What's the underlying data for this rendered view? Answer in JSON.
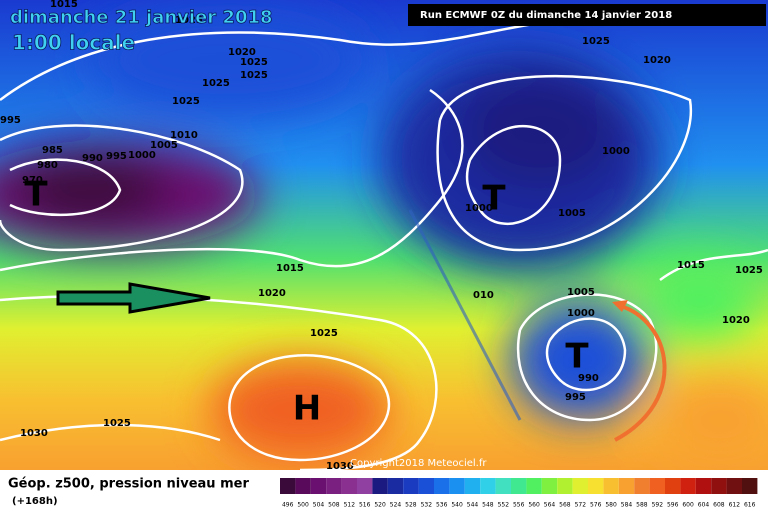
{
  "header": {
    "date": "dimanche 21 janvier 2018",
    "time": "1:00 locale",
    "run": "Run ECMWF 0Z du dimanche 14 janvier 2018"
  },
  "map": {
    "pressure_labels": [
      "1015",
      "1025",
      "1020",
      "1025",
      "1025",
      "1025",
      "1025",
      "995",
      "1010",
      "1005",
      "985",
      "990",
      "995",
      "1000",
      "980",
      "970",
      "1000",
      "1005",
      "1000",
      "1025",
      "1020",
      "1015",
      "1020",
      "010",
      "1005",
      "1000",
      "1025",
      "1015",
      "1025",
      "1020",
      "990",
      "995",
      "1025",
      "1030",
      "1030"
    ],
    "systems": [
      "T",
      "T",
      "T",
      "H"
    ]
  },
  "footer": {
    "title": "Géop. z500, pression niveau mer",
    "lead": "(+168h)",
    "copyright": "Copyright2018 Meteociel.fr"
  },
  "colorbar": {
    "labels": [
      496,
      500,
      504,
      508,
      512,
      516,
      520,
      524,
      528,
      532,
      536,
      540,
      544,
      548,
      552,
      556,
      560,
      564,
      568,
      572,
      576,
      580,
      584,
      588,
      592,
      596,
      600,
      604,
      608,
      612,
      616
    ],
    "colors": [
      "#3a0a3a",
      "#5a0a5a",
      "#6a1070",
      "#7a2080",
      "#8a3090",
      "#9040a0",
      "#1a1a80",
      "#1a2aa0",
      "#1a3ac0",
      "#1a50d8",
      "#1a70e8",
      "#1a90f0",
      "#20b0f0",
      "#30d0e8",
      "#40e0c0",
      "#40e890",
      "#50f060",
      "#80f040",
      "#b0f030",
      "#e0f030",
      "#f8e030",
      "#f8c030",
      "#f8a030",
      "#f08030",
      "#f06020",
      "#e04010",
      "#d02010",
      "#b01010",
      "#901010",
      "#701010",
      "#501010"
    ]
  }
}
